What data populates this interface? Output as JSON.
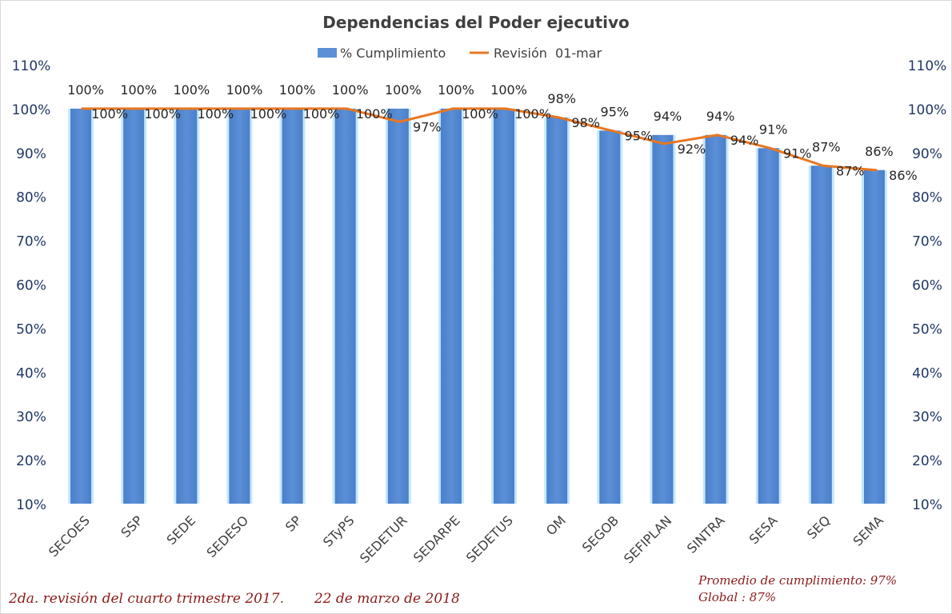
{
  "chart_data": {
    "type": "bar",
    "title": "Dependencias del Poder ejecutivo",
    "categories": [
      "SECOES",
      "SSP",
      "SEDE",
      "SEDESO",
      "SP",
      "STyPS",
      "SEDETUR",
      "SEDARPE",
      "SEDETUS",
      "OM",
      "SEGOB",
      "SEFIPLAN",
      "SINTRA",
      "SESA",
      "SEQ",
      "SEMA"
    ],
    "series": [
      {
        "name": "% Cumplimiento",
        "kind": "bar",
        "color": "#5b8fd6",
        "values": [
          100,
          100,
          100,
          100,
          100,
          100,
          100,
          100,
          100,
          98,
          95,
          94,
          94,
          91,
          87,
          86
        ],
        "labels": [
          "100%",
          "100%",
          "100%",
          "100%",
          "100%",
          "100%",
          "100%",
          "100%",
          "100%",
          "98%",
          "95%",
          "94%",
          "94%",
          "91%",
          "87%",
          "86%"
        ]
      },
      {
        "name": "Revisión  01-mar",
        "kind": "line",
        "color": "#e87722",
        "values": [
          100,
          100,
          100,
          100,
          100,
          100,
          97,
          100,
          100,
          98,
          95,
          92,
          94,
          91,
          87,
          86
        ],
        "labels": [
          "100%",
          "100%",
          "100%",
          "100%",
          "100%",
          "100%",
          "97%",
          "100%",
          "100%",
          "98%",
          "95%",
          "92%",
          "94%",
          "91%",
          "87%",
          "86%"
        ]
      }
    ],
    "ylim": [
      10,
      110
    ],
    "yticks": [
      "10%",
      "20%",
      "30%",
      "40%",
      "50%",
      "60%",
      "70%",
      "80%",
      "90%",
      "100%",
      "110%"
    ],
    "grid": false,
    "legend": "top"
  },
  "footer": {
    "left": "2da. revisión del cuarto trimestre 2017.       22 de marzo de 2018",
    "right_line1": "Promedio de cumplimiento: 97%",
    "right_line2": "Global : 87%"
  }
}
